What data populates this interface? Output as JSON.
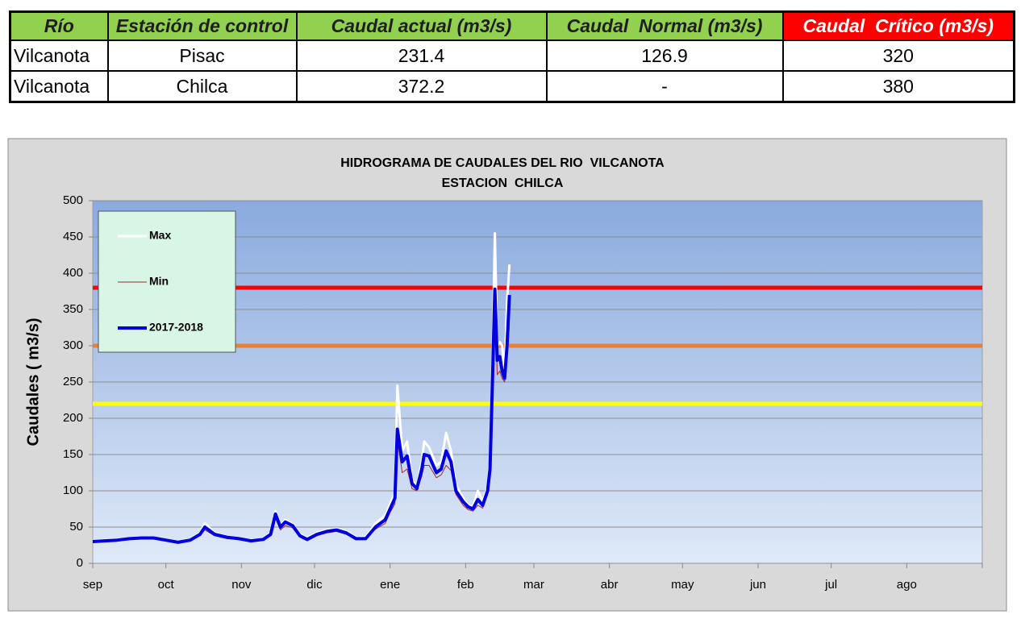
{
  "table": {
    "header": [
      "Río",
      "Estación de control",
      "Caudal actual (m3/s)",
      "Caudal  Normal (m3/s)",
      "Caudal  Crítico (m3/s)"
    ],
    "rows": [
      [
        "Vilcanota",
        "Pisac",
        "231.4",
        "126.9",
        "320"
      ],
      [
        "Vilcanota",
        "Chilca",
        "372.2",
        "-",
        "380"
      ]
    ]
  },
  "chart_data": {
    "type": "line",
    "title": "HIDROGRAMA DE CAUDALES DEL RIO  VILCANOTA",
    "subtitle": "ESTACION  CHILCA",
    "ylabel": "Caudales ( m3/s)",
    "xlim": [
      0,
      365
    ],
    "xticks": [
      {
        "value": 0,
        "label": "sep"
      },
      {
        "value": 30,
        "label": "oct"
      },
      {
        "value": 61,
        "label": "nov"
      },
      {
        "value": 91,
        "label": "dic"
      },
      {
        "value": 122,
        "label": "ene"
      },
      {
        "value": 153,
        "label": "feb"
      },
      {
        "value": 181,
        "label": "mar"
      },
      {
        "value": 212,
        "label": "abr"
      },
      {
        "value": 242,
        "label": "may"
      },
      {
        "value": 273,
        "label": "jun"
      },
      {
        "value": 303,
        "label": "jul"
      },
      {
        "value": 334,
        "label": "ago"
      }
    ],
    "ylim": [
      0,
      500
    ],
    "yticks": [
      0,
      50,
      100,
      150,
      200,
      250,
      300,
      350,
      400,
      450,
      500
    ],
    "grid": true,
    "legend": "upper left",
    "reference_lines": [
      {
        "value": 380,
        "color": "#ff0000"
      },
      {
        "value": 300,
        "color": "#ed7d31"
      },
      {
        "value": 220,
        "color": "#ffff00"
      }
    ],
    "x": [
      0,
      5,
      10,
      15,
      20,
      25,
      30,
      35,
      40,
      44,
      46,
      50,
      55,
      60,
      65,
      70,
      73,
      75,
      77,
      79,
      82,
      85,
      88,
      92,
      96,
      100,
      104,
      108,
      112,
      116,
      120,
      122,
      124,
      125,
      127,
      129,
      131,
      133,
      135,
      136,
      138,
      141,
      143,
      145,
      147,
      149,
      152,
      154,
      156,
      158,
      160,
      162,
      163,
      164,
      165,
      166,
      167,
      168,
      169,
      170,
      171
    ],
    "series": [
      {
        "name": "Max",
        "color": "#ffffff",
        "width": 3,
        "values": [
          31,
          32,
          33,
          35,
          36,
          36,
          33,
          30,
          33,
          42,
          55,
          42,
          37,
          35,
          32,
          34,
          42,
          72,
          52,
          60,
          54,
          40,
          35,
          42,
          46,
          48,
          44,
          36,
          36,
          55,
          66,
          82,
          98,
          245,
          155,
          168,
          115,
          106,
          140,
          168,
          160,
          135,
          140,
          180,
          155,
          108,
          90,
          80,
          78,
          100,
          85,
          105,
          140,
          280,
          455,
          300,
          305,
          300,
          260,
          360,
          412
        ]
      },
      {
        "name": "Min",
        "color": "#a0282d",
        "width": 1,
        "values": [
          30,
          30,
          31,
          33,
          34,
          34,
          31,
          28,
          31,
          38,
          46,
          38,
          34,
          33,
          30,
          32,
          38,
          62,
          46,
          52,
          49,
          36,
          31,
          38,
          42,
          44,
          40,
          33,
          33,
          47,
          55,
          70,
          82,
          170,
          125,
          130,
          103,
          100,
          120,
          135,
          135,
          118,
          122,
          135,
          128,
          95,
          80,
          74,
          72,
          80,
          76,
          95,
          120,
          230,
          370,
          260,
          265,
          255,
          250,
          280,
          330
        ]
      },
      {
        "name": "2017-2018",
        "color": "#0000e0",
        "width": 4,
        "values": [
          30,
          31,
          32,
          34,
          35,
          35,
          32,
          29,
          32,
          40,
          50,
          40,
          36,
          34,
          31,
          33,
          40,
          68,
          50,
          57,
          52,
          38,
          33,
          40,
          44,
          46,
          42,
          34,
          34,
          50,
          60,
          75,
          90,
          185,
          140,
          148,
          110,
          103,
          130,
          150,
          148,
          125,
          130,
          155,
          140,
          100,
          85,
          78,
          75,
          88,
          80,
          100,
          130,
          250,
          378,
          280,
          285,
          265,
          255,
          300,
          370
        ]
      }
    ]
  }
}
